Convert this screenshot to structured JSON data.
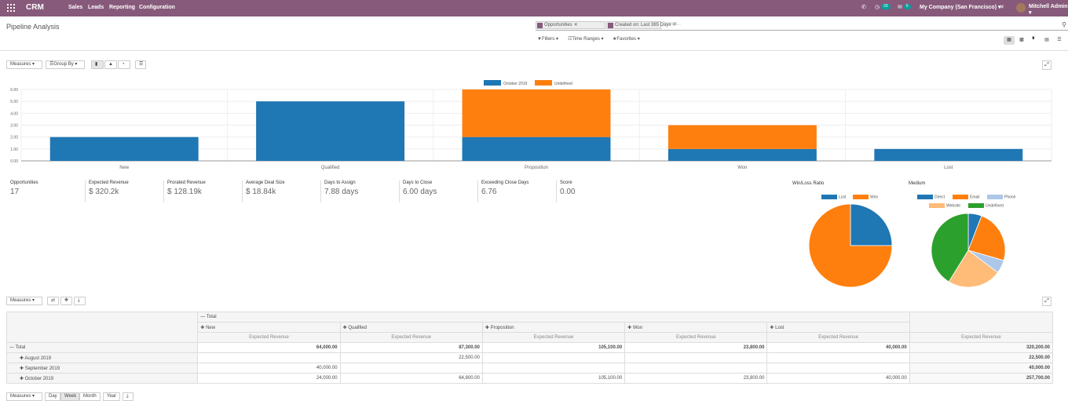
{
  "topbar": {
    "brand": "CRM",
    "menu": [
      "Sales",
      "Leads",
      "Reporting",
      "Configuration"
    ],
    "activity_count": "29",
    "message_count": "5",
    "company": "My Company (San Francisco)",
    "user": "Mitchell Admin"
  },
  "page": {
    "title": "Pipeline Analysis",
    "facets": [
      "Opportunities",
      "Created on: Last 365 Days"
    ],
    "search_placeholder": "Search...",
    "filters_label": "Filters",
    "time_ranges_label": "Time Ranges",
    "favorites_label": "Favorites"
  },
  "graph_toolbar": {
    "measures_label": "Measures",
    "group_by_label": "Group By"
  },
  "chart_data": {
    "type": "bar",
    "stacked": true,
    "categories": [
      "New",
      "Qualified",
      "Proposition",
      "Won",
      "Lost"
    ],
    "series": [
      {
        "name": "October 2019",
        "color": "#1f77b4",
        "values": [
          2,
          5,
          2,
          1,
          1
        ]
      },
      {
        "name": "Undefined",
        "color": "#ff7f0e",
        "values": [
          0,
          0,
          4,
          2,
          0
        ]
      }
    ],
    "ylim": [
      0,
      6
    ],
    "yticks": [
      "0.00",
      "1.00",
      "2.00",
      "3.00",
      "4.00",
      "5.00",
      "6.00"
    ],
    "legend": "top-center",
    "grid": true
  },
  "kpis": [
    {
      "label": "Opportunities",
      "value": "17"
    },
    {
      "label": "Expected Revenue",
      "value": "$ 320.2k"
    },
    {
      "label": "Prorated Revenue",
      "value": "$ 128.19k"
    },
    {
      "label": "Average Deal Size",
      "value": "$ 18.84k"
    },
    {
      "label": "Days to Assign",
      "value": "7.88 days"
    },
    {
      "label": "Days to Close",
      "value": "6.00 days"
    },
    {
      "label": "Exceeding Close Days",
      "value": "6.76"
    },
    {
      "label": "Score",
      "value": "0.00"
    }
  ],
  "pie_winloss": {
    "title": "Win/Loss Ratio",
    "slices": [
      {
        "name": "Lost",
        "value": 1,
        "color": "#1f77b4"
      },
      {
        "name": "Won",
        "value": 3,
        "color": "#ff7f0e"
      }
    ]
  },
  "pie_medium": {
    "title": "Medium",
    "slices": [
      {
        "name": "Direct",
        "value": 1,
        "color": "#1f77b4"
      },
      {
        "name": "Email",
        "value": 4,
        "color": "#ff7f0e"
      },
      {
        "name": "Phone",
        "value": 1,
        "color": "#aec7e8"
      },
      {
        "name": "Website",
        "value": 4,
        "color": "#ffbb78"
      },
      {
        "name": "Undefined",
        "value": 7,
        "color": "#2ca02c"
      }
    ]
  },
  "pivot": {
    "measures_label": "Measures",
    "total_label": "Total",
    "columns": [
      "New",
      "Qualified",
      "Proposition",
      "Won",
      "Lost"
    ],
    "measure_name": "Expected Revenue",
    "rows": [
      {
        "label": "Total",
        "values": [
          "64,000.00",
          "87,300.00",
          "105,100.00",
          "23,800.00",
          "40,000.00",
          "320,200.00"
        ]
      },
      {
        "label": "August 2019",
        "values": [
          "",
          "22,500.00",
          "",
          "",
          "",
          "22,500.00"
        ]
      },
      {
        "label": "September 2019",
        "values": [
          "40,000.00",
          "",
          "",
          "",
          "",
          "40,000.00"
        ]
      },
      {
        "label": "October 2019",
        "values": [
          "24,000.00",
          "64,800.00",
          "105,100.00",
          "23,800.00",
          "40,000.00",
          "257,700.00"
        ]
      }
    ]
  },
  "cohort_toolbar": {
    "measures_label": "Measures",
    "intervals": [
      "Day",
      "Week",
      "Month",
      "Year"
    ]
  }
}
